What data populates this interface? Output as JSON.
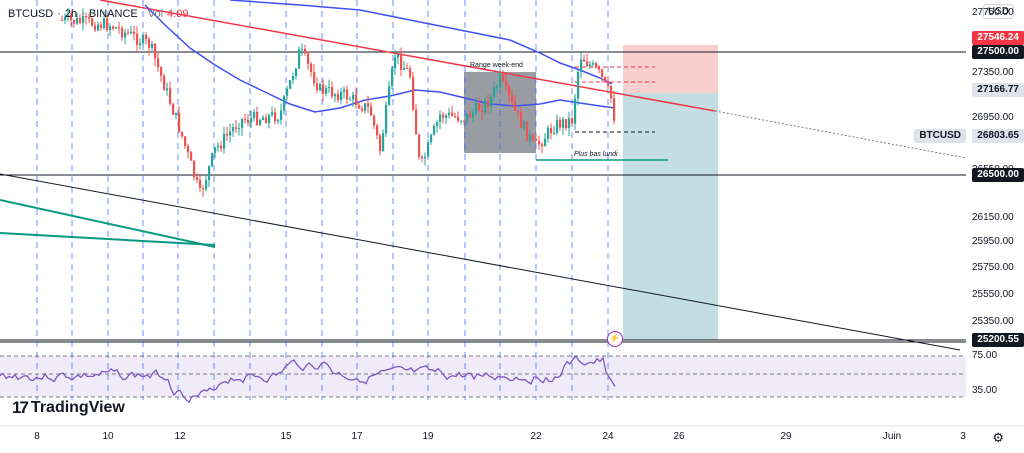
{
  "header": {
    "symbol": "BTCUSD",
    "sep1": "·",
    "timeframe": "2h",
    "sep2": "·",
    "exchange": "BINANCE",
    "vol_label": "Vol",
    "vol_value": "4.09"
  },
  "currency_button": "USD",
  "price_axis": {
    "ticks": [
      "27750.00",
      "27350.00",
      "26950.00",
      "26550.00",
      "26150.00",
      "25950.00",
      "25750.00",
      "25550.00",
      "25350.00"
    ],
    "tags": [
      {
        "label": "27546.24",
        "bg": "#f23645",
        "fg": "#ffffff"
      },
      {
        "label": "27500.00",
        "bg": "#131722",
        "fg": "#ffffff"
      },
      {
        "label": "27166.77",
        "bg": "#e0e3eb",
        "fg": "#131722"
      },
      {
        "label": "BTCUSD",
        "bg": "#e0e3eb",
        "fg": "#131722"
      },
      {
        "label": "26803.65",
        "bg": "#e0e3eb",
        "fg": "#131722"
      },
      {
        "label": "26500.00",
        "bg": "#131722",
        "fg": "#ffffff"
      },
      {
        "label": "25200.55",
        "bg": "#131722",
        "fg": "#ffffff"
      }
    ]
  },
  "rsi_axis": {
    "ticks": [
      "75.00",
      "35.00"
    ]
  },
  "date_axis": [
    "8",
    "10",
    "12",
    "15",
    "17",
    "19",
    "22",
    "24",
    "26",
    "29",
    "Juin",
    "3"
  ],
  "annotations": {
    "range_box": "Range week-end",
    "low_line": "Plus bas lundi"
  },
  "branding": {
    "logo_mark": "17",
    "logo_text": "TradingView"
  },
  "colors": {
    "up": "#26a69a",
    "down": "#ef5350",
    "ma_blue": "#3f51f5",
    "trend_red": "#f23645",
    "rsi": "#7e57c2",
    "stop_zone": "#f7c6c6",
    "target_zone": "#b7d8dd"
  },
  "chart_data": {
    "type": "candlestick",
    "y_range": [
      25200,
      27800
    ],
    "levels": [
      27500.0,
      26500.0,
      25200.55
    ],
    "last_price": 26803.65,
    "position": {
      "entry": 27166.77,
      "stop": 27546.24,
      "target": 25200.55
    },
    "rsi_range": [
      35,
      75
    ]
  }
}
